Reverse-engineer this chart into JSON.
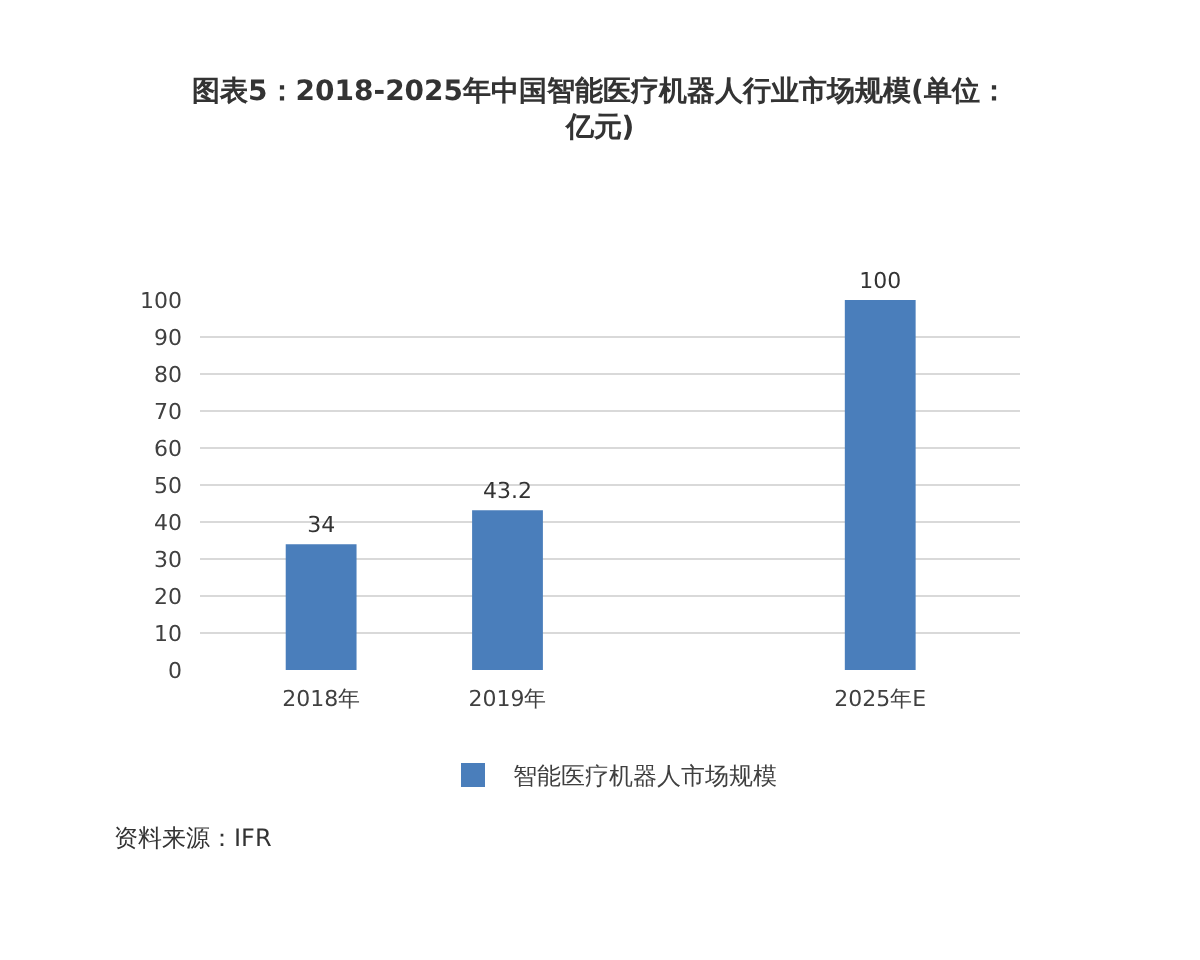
{
  "chart_data": {
    "type": "bar",
    "title": "图表5：2018-2025年中国智能医疗机器人行业市场规模(单位：亿元)",
    "categories": [
      "2018年",
      "2019年",
      null,
      "2025年E"
    ],
    "series": [
      {
        "name": "智能医疗机器人市场规模",
        "color": "#4a7ebb",
        "values": [
          34,
          43.2,
          null,
          100
        ]
      }
    ],
    "ylim": [
      0,
      100
    ],
    "yticks": [
      0,
      10,
      20,
      30,
      40,
      50,
      60,
      70,
      80,
      90,
      100
    ],
    "grid": "y",
    "legend": "bottom",
    "data_labels": true,
    "annotations": [
      "资料来源：IFR"
    ]
  }
}
